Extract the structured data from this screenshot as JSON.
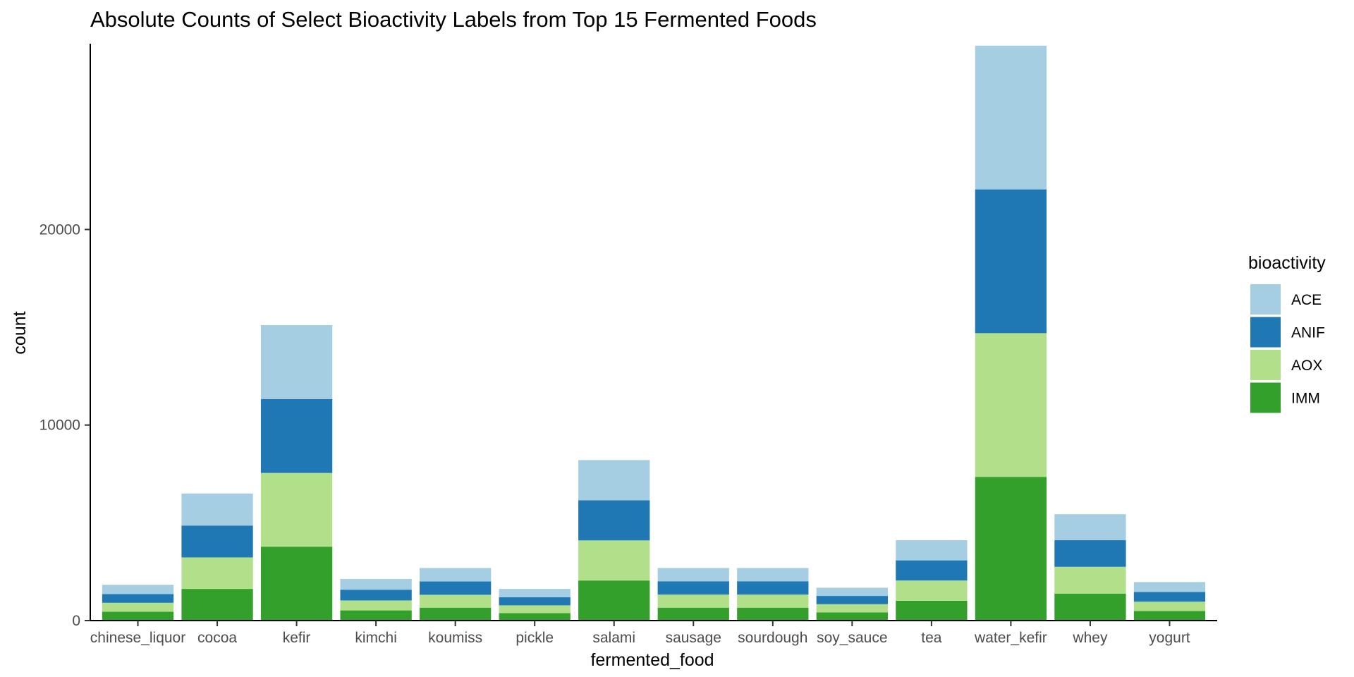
{
  "chart_data": {
    "type": "bar",
    "stacked": true,
    "title": "Absolute Counts of Select Bioactivity Labels from Top 15 Fermented Foods",
    "xlabel": "fermented_food",
    "ylabel": "count",
    "ylim": [
      0,
      29500
    ],
    "yticks": [
      "0",
      "10000",
      "20000"
    ],
    "grid": false,
    "legend": {
      "title": "bioactivity",
      "placement": "right"
    },
    "categories": [
      "chinese_liquor",
      "cocoa",
      "kefir",
      "kimchi",
      "koumiss",
      "pickle",
      "salami",
      "sausage",
      "sourdough",
      "soy_sauce",
      "tea",
      "water_kefir",
      "whey",
      "yogurt"
    ],
    "series": [
      {
        "name": "IMM",
        "color": "#33a02c",
        "values": [
          450,
          1620,
          3780,
          520,
          660,
          380,
          2050,
          660,
          660,
          420,
          1010,
          7350,
          1380,
          490
        ]
      },
      {
        "name": "AOX",
        "color": "#b2df8a",
        "values": [
          460,
          1610,
          3770,
          510,
          660,
          400,
          2050,
          670,
          670,
          420,
          1040,
          7350,
          1370,
          480
        ]
      },
      {
        "name": "ANIF",
        "color": "#1f78b4",
        "values": [
          450,
          1630,
          3780,
          550,
          680,
          410,
          2050,
          680,
          680,
          420,
          1030,
          7350,
          1360,
          490
        ]
      },
      {
        "name": "ACE",
        "color": "#a6cee3",
        "values": [
          470,
          1640,
          3780,
          550,
          690,
          430,
          2060,
          680,
          680,
          420,
          1030,
          7350,
          1330,
          510
        ]
      }
    ]
  }
}
